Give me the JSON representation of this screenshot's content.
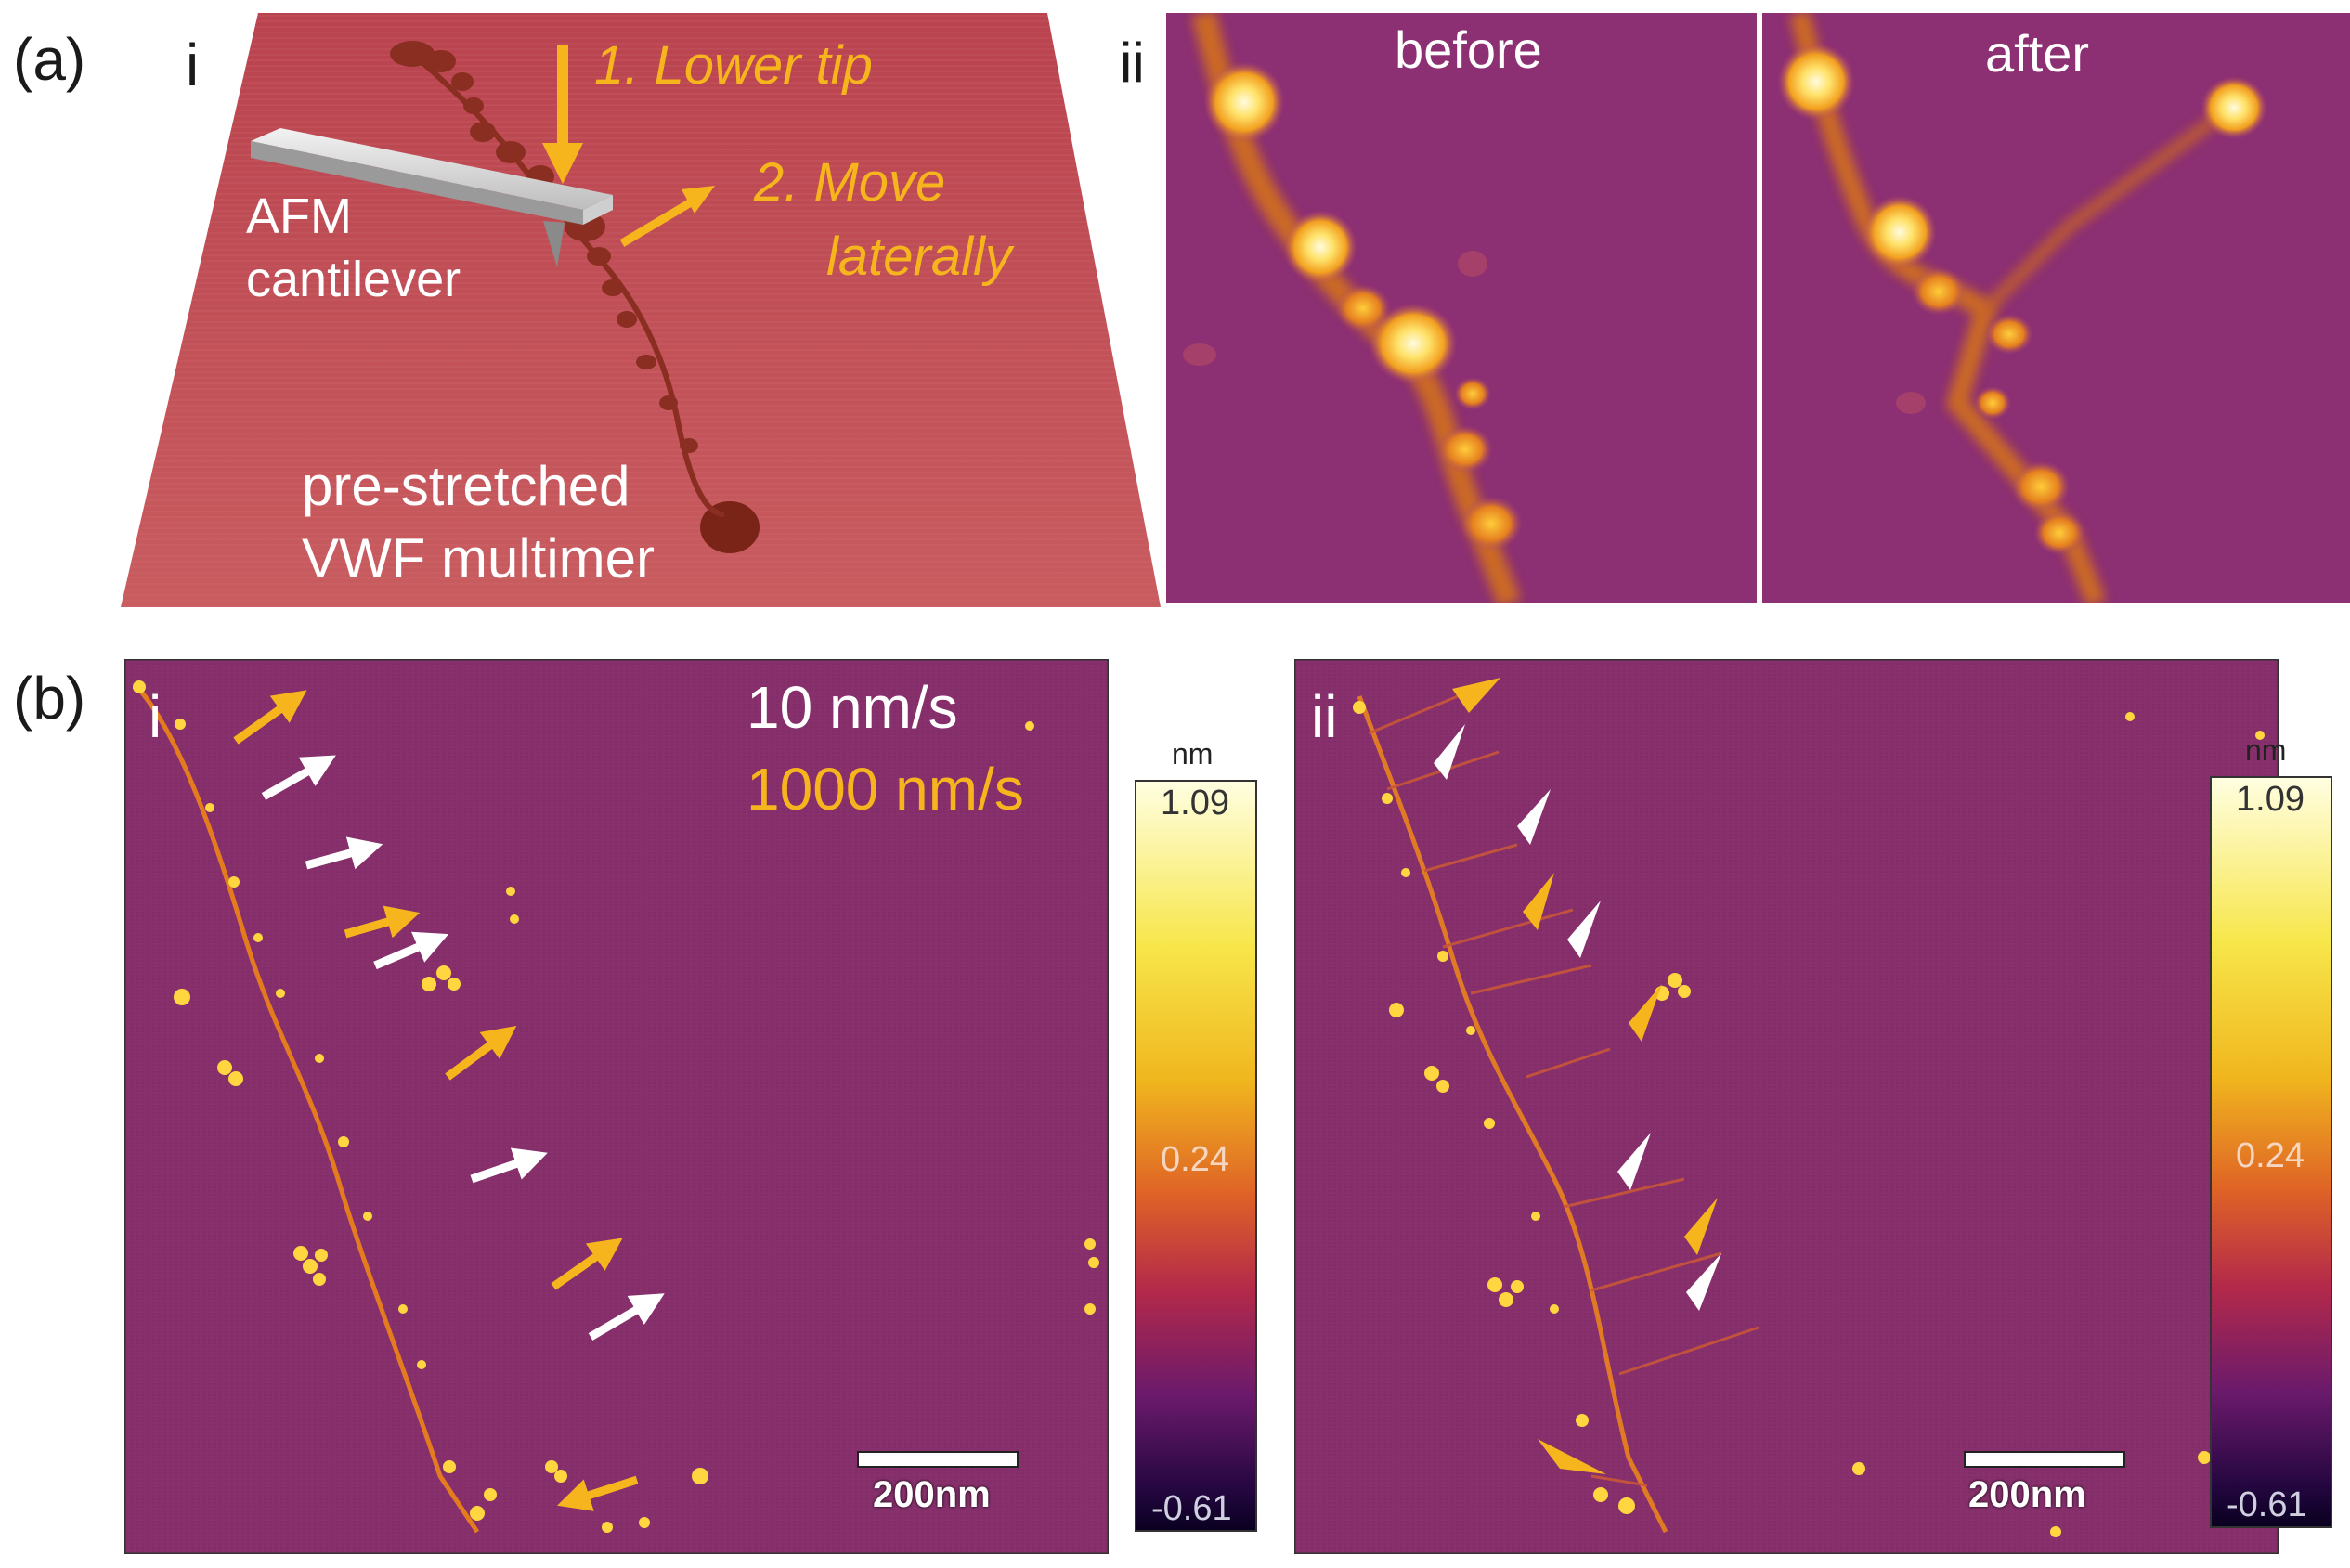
{
  "panel_a": {
    "label": "(a)",
    "i": {
      "label": "i",
      "step1": "1. Lower tip",
      "step2_line1": "2. Move",
      "step2_line2": "laterally",
      "cantilever_line1": "AFM",
      "cantilever_line2": "cantilever",
      "sample_line1": "pre-stretched",
      "sample_line2": "VWF multimer"
    },
    "ii": {
      "label": "ii",
      "before": "before",
      "after": "after"
    }
  },
  "panel_b": {
    "label": "(b)",
    "i": {
      "label": "i",
      "speed_slow": "10 nm/s",
      "speed_fast": "1000 nm/s",
      "scalebar": "200nm",
      "colorbar": {
        "unit": "nm",
        "max": "1.09",
        "mid": "0.24",
        "min": "-0.61"
      }
    },
    "ii": {
      "label": "ii",
      "scalebar": "200nm",
      "colorbar": {
        "unit": "nm",
        "max": "1.09",
        "mid": "0.24",
        "min": "-0.61"
      }
    }
  },
  "colors": {
    "slow_arrow": "#ffffff",
    "fast_arrow": "#f7b51d",
    "afm_background": "#8a2a6a",
    "surface_3d": "#c14d55"
  }
}
